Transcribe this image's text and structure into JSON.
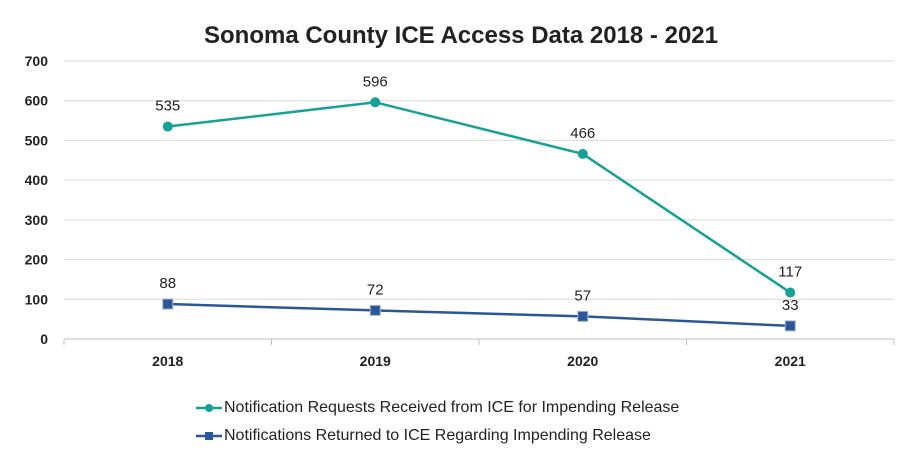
{
  "chart_data": {
    "type": "line",
    "title": "Sonoma County ICE Access Data 2018 - 2021",
    "categories": [
      "2018",
      "2019",
      "2020",
      "2021"
    ],
    "y_ticks": [
      "0",
      "100",
      "200",
      "300",
      "400",
      "500",
      "600",
      "700"
    ],
    "ylim": [
      0,
      700
    ],
    "grid": true,
    "legend_position": "bottom",
    "series": [
      {
        "name": "Notification Requests Received from ICE for Impending Release",
        "values": [
          535,
          596,
          466,
          117
        ],
        "labels": [
          "535",
          "596",
          "466",
          "117"
        ],
        "color": "#17a095",
        "marker": "circle"
      },
      {
        "name": "Notifications Returned to ICE Regarding Impending Release",
        "values": [
          88,
          72,
          57,
          33
        ],
        "labels": [
          "88",
          "72",
          "57",
          "33"
        ],
        "color": "#2b5797",
        "marker": "square"
      }
    ]
  }
}
